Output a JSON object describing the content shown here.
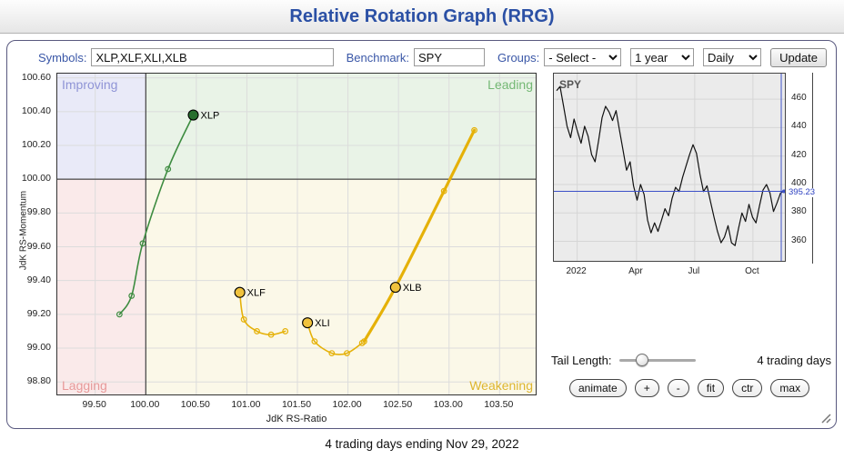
{
  "header": {
    "title": "Relative Rotation Graph (RRG)"
  },
  "toolbar": {
    "symbols_label": "Symbols:",
    "symbols_value": "XLP,XLF,XLI,XLB",
    "benchmark_label": "Benchmark:",
    "benchmark_value": "SPY",
    "groups_label": "Groups:",
    "groups_value": "- Select -",
    "period_value": "1 year",
    "frequency_value": "Daily",
    "update_label": "Update"
  },
  "controls": {
    "tail_label": "Tail Length:",
    "tail_value": "4 trading days",
    "buttons": [
      {
        "label": "animate"
      },
      {
        "label": "+"
      },
      {
        "label": "-"
      },
      {
        "label": "fit"
      },
      {
        "label": "ctr"
      },
      {
        "label": "max"
      }
    ]
  },
  "footer": {
    "caption": "4 trading days ending Nov 29, 2022"
  },
  "chart_data": [
    {
      "type": "scatter",
      "title": "Relative Rotation Graph",
      "xlabel": "JdK RS-Ratio",
      "ylabel": "JdK RS-Momentum",
      "xlim": [
        99.125,
        103.875
      ],
      "ylim": [
        98.715,
        100.625
      ],
      "xticks": [
        "99.50",
        "100.00",
        "100.50",
        "101.00",
        "101.50",
        "102.00",
        "102.50",
        "103.00",
        "103.50"
      ],
      "yticks": [
        "100.60",
        "100.40",
        "100.20",
        "100.00",
        "99.80",
        "99.60",
        "99.40",
        "99.20",
        "99.00",
        "98.80"
      ],
      "center": [
        100.0,
        100.0
      ],
      "grid": true,
      "quadrants": [
        {
          "name": "Improving",
          "position": "top-left",
          "bg": "#e9eaf8",
          "color": "#8f94d6"
        },
        {
          "name": "Leading",
          "position": "top-right",
          "bg": "#e9f3e7",
          "color": "#74b874"
        },
        {
          "name": "Lagging",
          "position": "bottom-left",
          "bg": "#faeaea",
          "color": "#e79999"
        },
        {
          "name": "Weakening",
          "position": "bottom-right",
          "bg": "#fbf8e8",
          "color": "#ddb52f"
        }
      ],
      "series": [
        {
          "name": "XLP",
          "color": "#3d8c40",
          "marker_color": "#276e2e",
          "width": 1.6,
          "marker_index": 4,
          "points": [
            [
              99.74,
              99.2
            ],
            [
              99.86,
              99.31
            ],
            [
              99.97,
              99.62
            ],
            [
              100.22,
              100.06
            ],
            [
              100.47,
              100.38
            ]
          ]
        },
        {
          "name": "XLF",
          "color": "#e5b108",
          "marker_color": "#f0c23d",
          "width": 1.6,
          "marker_index": 4,
          "points": [
            [
              101.38,
              99.1
            ],
            [
              101.24,
              99.08
            ],
            [
              101.1,
              99.1
            ],
            [
              100.97,
              99.17
            ],
            [
              100.93,
              99.33
            ]
          ]
        },
        {
          "name": "XLI",
          "color": "#e5b108",
          "marker_color": "#f0c23d",
          "width": 1.6,
          "marker_index": 4,
          "points": [
            [
              102.14,
              99.03
            ],
            [
              101.99,
              98.97
            ],
            [
              101.84,
              98.97
            ],
            [
              101.67,
              99.04
            ],
            [
              101.6,
              99.15
            ]
          ]
        },
        {
          "name": "XLB",
          "color": "#e5b108",
          "marker_color": "#f0c23d",
          "width": 3.2,
          "marker_index": 1,
          "points": [
            [
              102.16,
              99.04
            ],
            [
              102.47,
              99.36
            ],
            [
              102.95,
              99.93
            ],
            [
              103.25,
              100.29
            ]
          ]
        }
      ]
    },
    {
      "type": "line",
      "title": "SPY",
      "ylim": [
        345,
        478
      ],
      "yticks": [
        460,
        440,
        420,
        400,
        380,
        360
      ],
      "xtick_labels": [
        {
          "label": "2022",
          "pos": 0.1
        },
        {
          "label": "Apr",
          "pos": 0.355
        },
        {
          "label": "Jul",
          "pos": 0.605
        },
        {
          "label": "Oct",
          "pos": 0.855
        }
      ],
      "line_color": "#111111",
      "last_price": "395.23",
      "last_price_value": 395.23,
      "accent_color": "#3c50c8",
      "values": [
        466,
        469,
        455,
        441,
        433,
        446,
        437,
        429,
        441,
        434,
        421,
        416,
        431,
        447,
        455,
        451,
        445,
        452,
        438,
        424,
        410,
        416,
        399,
        389,
        400,
        393,
        375,
        366,
        373,
        367,
        375,
        383,
        378,
        390,
        398,
        395,
        405,
        413,
        421,
        428,
        422,
        407,
        395,
        399,
        388,
        377,
        367,
        359,
        363,
        371,
        359,
        357,
        369,
        380,
        374,
        386,
        377,
        373,
        385,
        396,
        400,
        394,
        381,
        387,
        394,
        395.23
      ]
    }
  ]
}
